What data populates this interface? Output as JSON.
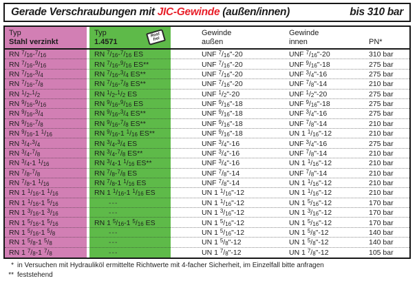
{
  "title": {
    "prefix": "Gerade Verschraubungen mit ",
    "highlight": "JIC-Gewinde",
    "suffix": " (außen/innen)",
    "pressure": "bis 310 bar"
  },
  "colors": {
    "pink_column": "#d27fb4",
    "green_column": "#5eba49",
    "title_red": "#e8202a"
  },
  "table": {
    "header": {
      "typ_label": "Typ",
      "col1_material": "Stahl verzinkt",
      "col2_material": "1.4571",
      "stamp_line1": "Rost",
      "stamp_line2": "frei",
      "gewinde": "Gewinde",
      "aussen": "außen",
      "innen": "innen",
      "pn": "PN*"
    },
    "rows": [
      {
        "typ_stahl": "RN 7/16-7/16",
        "typ_es": "RN 7/16-7/16 ES",
        "aussen": "UNF 7/16\"-20",
        "innen": "UNF 7/16\"-20",
        "pn": "310 bar"
      },
      {
        "typ_stahl": "RN 7/16-9/16",
        "typ_es": "RN 7/16-9/16 ES**",
        "aussen": "UNF 7/16\"-20",
        "innen": "UNF 9/16\"-18",
        "pn": "275 bar"
      },
      {
        "typ_stahl": "RN 7/16-3/4",
        "typ_es": "RN 7/16-3/4 ES**",
        "aussen": "UNF 7/16\"-20",
        "innen": "UNF 3/4\"-16",
        "pn": "275 bar"
      },
      {
        "typ_stahl": "RN 7/16-7/8",
        "typ_es": "RN 7/16-7/8 ES**",
        "aussen": "UNF 7/16\"-20",
        "innen": "UNF 7/8\"-14",
        "pn": "210 bar"
      },
      {
        "typ_stahl": "RN 1/2-1/2",
        "typ_es": "RN 1/2-1/2 ES",
        "aussen": "UNF 1/2\"-20",
        "innen": "UNF 1/2\"-20",
        "pn": "275 bar"
      },
      {
        "typ_stahl": "RN 9/16-9/16",
        "typ_es": "RN 9/16-9/16 ES",
        "aussen": "UNF 9/16\"-18",
        "innen": "UNF 9/16\"-18",
        "pn": "275 bar"
      },
      {
        "typ_stahl": "RN 9/16-3/4",
        "typ_es": "RN 9/16-3/4 ES**",
        "aussen": "UNF 9/16\"-18",
        "innen": "UNF 3/4\"-16",
        "pn": "275 bar"
      },
      {
        "typ_stahl": "RN 9/16-7/8",
        "typ_es": "RN 9/16-7/8 ES**",
        "aussen": "UNF 9/16\"-18",
        "innen": "UNF 7/8\"-14",
        "pn": "210 bar"
      },
      {
        "typ_stahl": "RN 9/16-1 1/16",
        "typ_es": "RN 9/16-1 1/16 ES**",
        "aussen": "UNF 9/16\"-18",
        "innen": "UN 1 1/16\"-12",
        "pn": "210 bar"
      },
      {
        "typ_stahl": "RN 3/4-3/4",
        "typ_es": "RN 3/4-3/4 ES",
        "aussen": "UNF 3/4\"-16",
        "innen": "UNF 3/4\"-16",
        "pn": "275 bar"
      },
      {
        "typ_stahl": "RN 3/4-7/8",
        "typ_es": "RN 3/4-7/8 ES**",
        "aussen": "UNF 3/4\"-16",
        "innen": "UNF 7/8\"-14",
        "pn": "210 bar"
      },
      {
        "typ_stahl": "RN 3/4-1 1/16",
        "typ_es": "RN 3/4-1 1/16 ES**",
        "aussen": "UNF 3/4\"-16",
        "innen": "UN 1 1/16\"-12",
        "pn": "210 bar"
      },
      {
        "typ_stahl": "RN 7/8-7/8",
        "typ_es": "RN 7/8-7/8 ES",
        "aussen": "UNF 7/8\"-14",
        "innen": "UNF 7/8\"-14",
        "pn": "210 bar"
      },
      {
        "typ_stahl": "RN 7/8-1 1/16",
        "typ_es": "RN 7/8-1 1/16 ES",
        "aussen": "UNF 7/8\"-14",
        "innen": "UN 1 1/16\"-12",
        "pn": "210 bar"
      },
      {
        "typ_stahl": "RN 1 1/16-1 1/16",
        "typ_es": "RN 1 1/16-1 1/16 ES",
        "aussen": "UN 1 1/16\"-12",
        "innen": "UN 1 1/16\"-12",
        "pn": "210 bar"
      },
      {
        "typ_stahl": "RN 1 1/16-1 5/16",
        "typ_es": "---",
        "aussen": "UN 1 1/16\"-12",
        "innen": "UN 1 5/16\"-12",
        "pn": "170 bar"
      },
      {
        "typ_stahl": "RN 1 3/16-1 3/16",
        "typ_es": "---",
        "aussen": "UN 1 3/16\"-12",
        "innen": "UN 1 3/16\"-12",
        "pn": "170 bar"
      },
      {
        "typ_stahl": "RN 1 5/16-1 5/16",
        "typ_es": "RN 1 5/16-1 5/16 ES",
        "aussen": "UN 1 5/16\"-12",
        "innen": "UN 1 5/16\"-12",
        "pn": "170 bar"
      },
      {
        "typ_stahl": "RN 1 5/16-1 5/8",
        "typ_es": "---",
        "aussen": "UN 1 5/16\"-12",
        "innen": "UN 1 5/8\"-12",
        "pn": "140 bar"
      },
      {
        "typ_stahl": "RN 1 5/8-1 5/8",
        "typ_es": "---",
        "aussen": "UN 1 5/8\"-12",
        "innen": "UN 1 5/8\"-12",
        "pn": "140 bar"
      },
      {
        "typ_stahl": "RN 1 7/8-1 7/8",
        "typ_es": "---",
        "aussen": "UN 1 7/8\"-12",
        "innen": "UN 1 7/8\"-12",
        "pn": "105 bar"
      }
    ]
  },
  "footnotes": [
    {
      "marker": "*",
      "text": "in Versuchen mit Hydrauliköl ermittelte Richtwerte mit 4-facher Sicherheit, im Einzelfall bitte anfragen"
    },
    {
      "marker": "**",
      "text": "feststehend"
    }
  ]
}
